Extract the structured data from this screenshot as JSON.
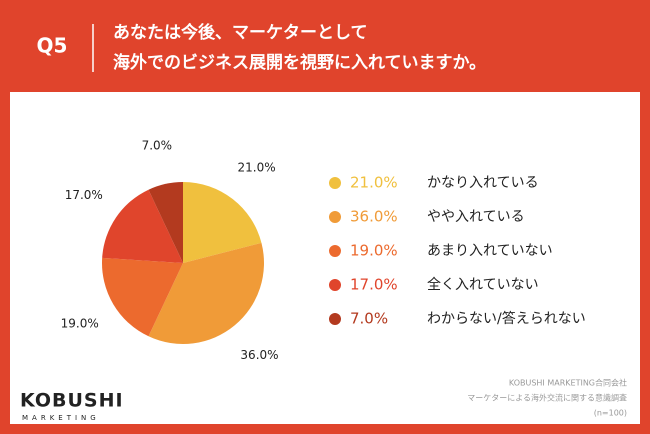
{
  "header": {
    "question": "Q5"
  },
  "chart_data": {
    "type": "pie",
    "title": [
      "あなたは今後、マーケターとして",
      "海外でのビジネス展開を視野に入れていますか。"
    ],
    "categories": [
      "かなり入れている",
      "やや入れている",
      "あまり入れていない",
      "全く入れていない",
      "わからない/答えられない"
    ],
    "values": [
      21,
      36,
      19,
      17,
      7
    ],
    "value_labels": [
      "21.0%",
      "36.0%",
      "19.0%",
      "17.0%",
      "7.0%"
    ],
    "colors": [
      "#f0c03e",
      "#f09b38",
      "#ec6a2e",
      "#e0452c",
      "#b33a1f"
    ]
  },
  "footer": {
    "logo": "KOBUSHI",
    "logo_sub": "MARKETING",
    "notes": [
      "KOBUSHI MARKETING合同会社",
      "マーケターによる海外交流に関する意識調査",
      "(n=100)"
    ]
  }
}
